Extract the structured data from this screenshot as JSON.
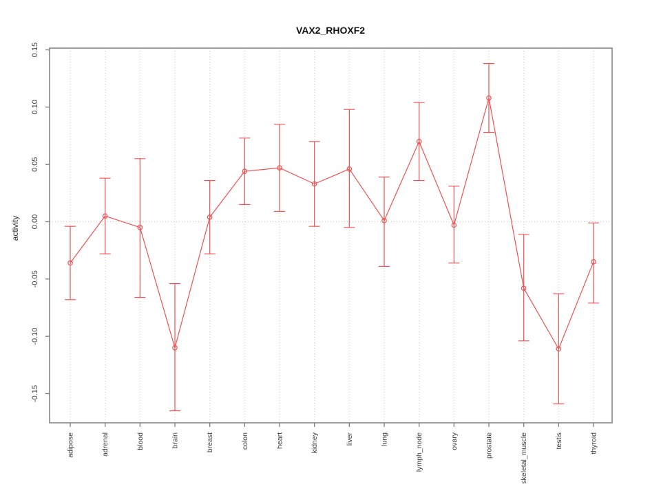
{
  "title": "VAX2_RHOXF2",
  "chart_data": {
    "type": "line",
    "title": "VAX2_RHOXF2",
    "xlabel": "",
    "ylabel": "activity",
    "categories": [
      "adipose",
      "adrenal",
      "blood",
      "brain",
      "breast",
      "colon",
      "heart",
      "kidney",
      "liver",
      "lung",
      "lymph_node",
      "ovary",
      "prostate",
      "skeletal_muscle",
      "testis",
      "thyroid"
    ],
    "series": [
      {
        "name": "activity",
        "values": [
          -0.036,
          0.005,
          -0.005,
          -0.11,
          0.004,
          0.044,
          0.047,
          0.033,
          0.046,
          0.001,
          0.07,
          -0.003,
          0.108,
          -0.058,
          -0.111,
          -0.035
        ],
        "error_upper": [
          -0.004,
          0.038,
          0.055,
          -0.054,
          0.036,
          0.073,
          0.085,
          0.07,
          0.098,
          0.039,
          0.104,
          0.031,
          0.138,
          -0.011,
          -0.063,
          -0.001
        ],
        "error_lower": [
          -0.068,
          -0.028,
          -0.066,
          -0.165,
          -0.028,
          0.015,
          0.009,
          -0.004,
          -0.005,
          -0.039,
          0.036,
          -0.036,
          0.078,
          -0.104,
          -0.159,
          -0.071
        ]
      }
    ],
    "ylim": [
      -0.177,
      0.15
    ],
    "yticks": [
      0.15,
      0.1,
      0.05,
      0.0,
      -0.05,
      -0.1,
      -0.15
    ],
    "ytick_labels": [
      "0.15",
      "0.10",
      "0.05",
      "0.00",
      "-0.05",
      "-0.10",
      "-0.15"
    ],
    "grid": "dotted vertical line at each category; dotted horizontal line at y=0; legend off",
    "marker": "open-circle",
    "colors": {
      "line": "#f05050",
      "grid": "#c9c9c9",
      "frame": "#7d7d7d",
      "tick_text": "#3a3a3a"
    }
  }
}
